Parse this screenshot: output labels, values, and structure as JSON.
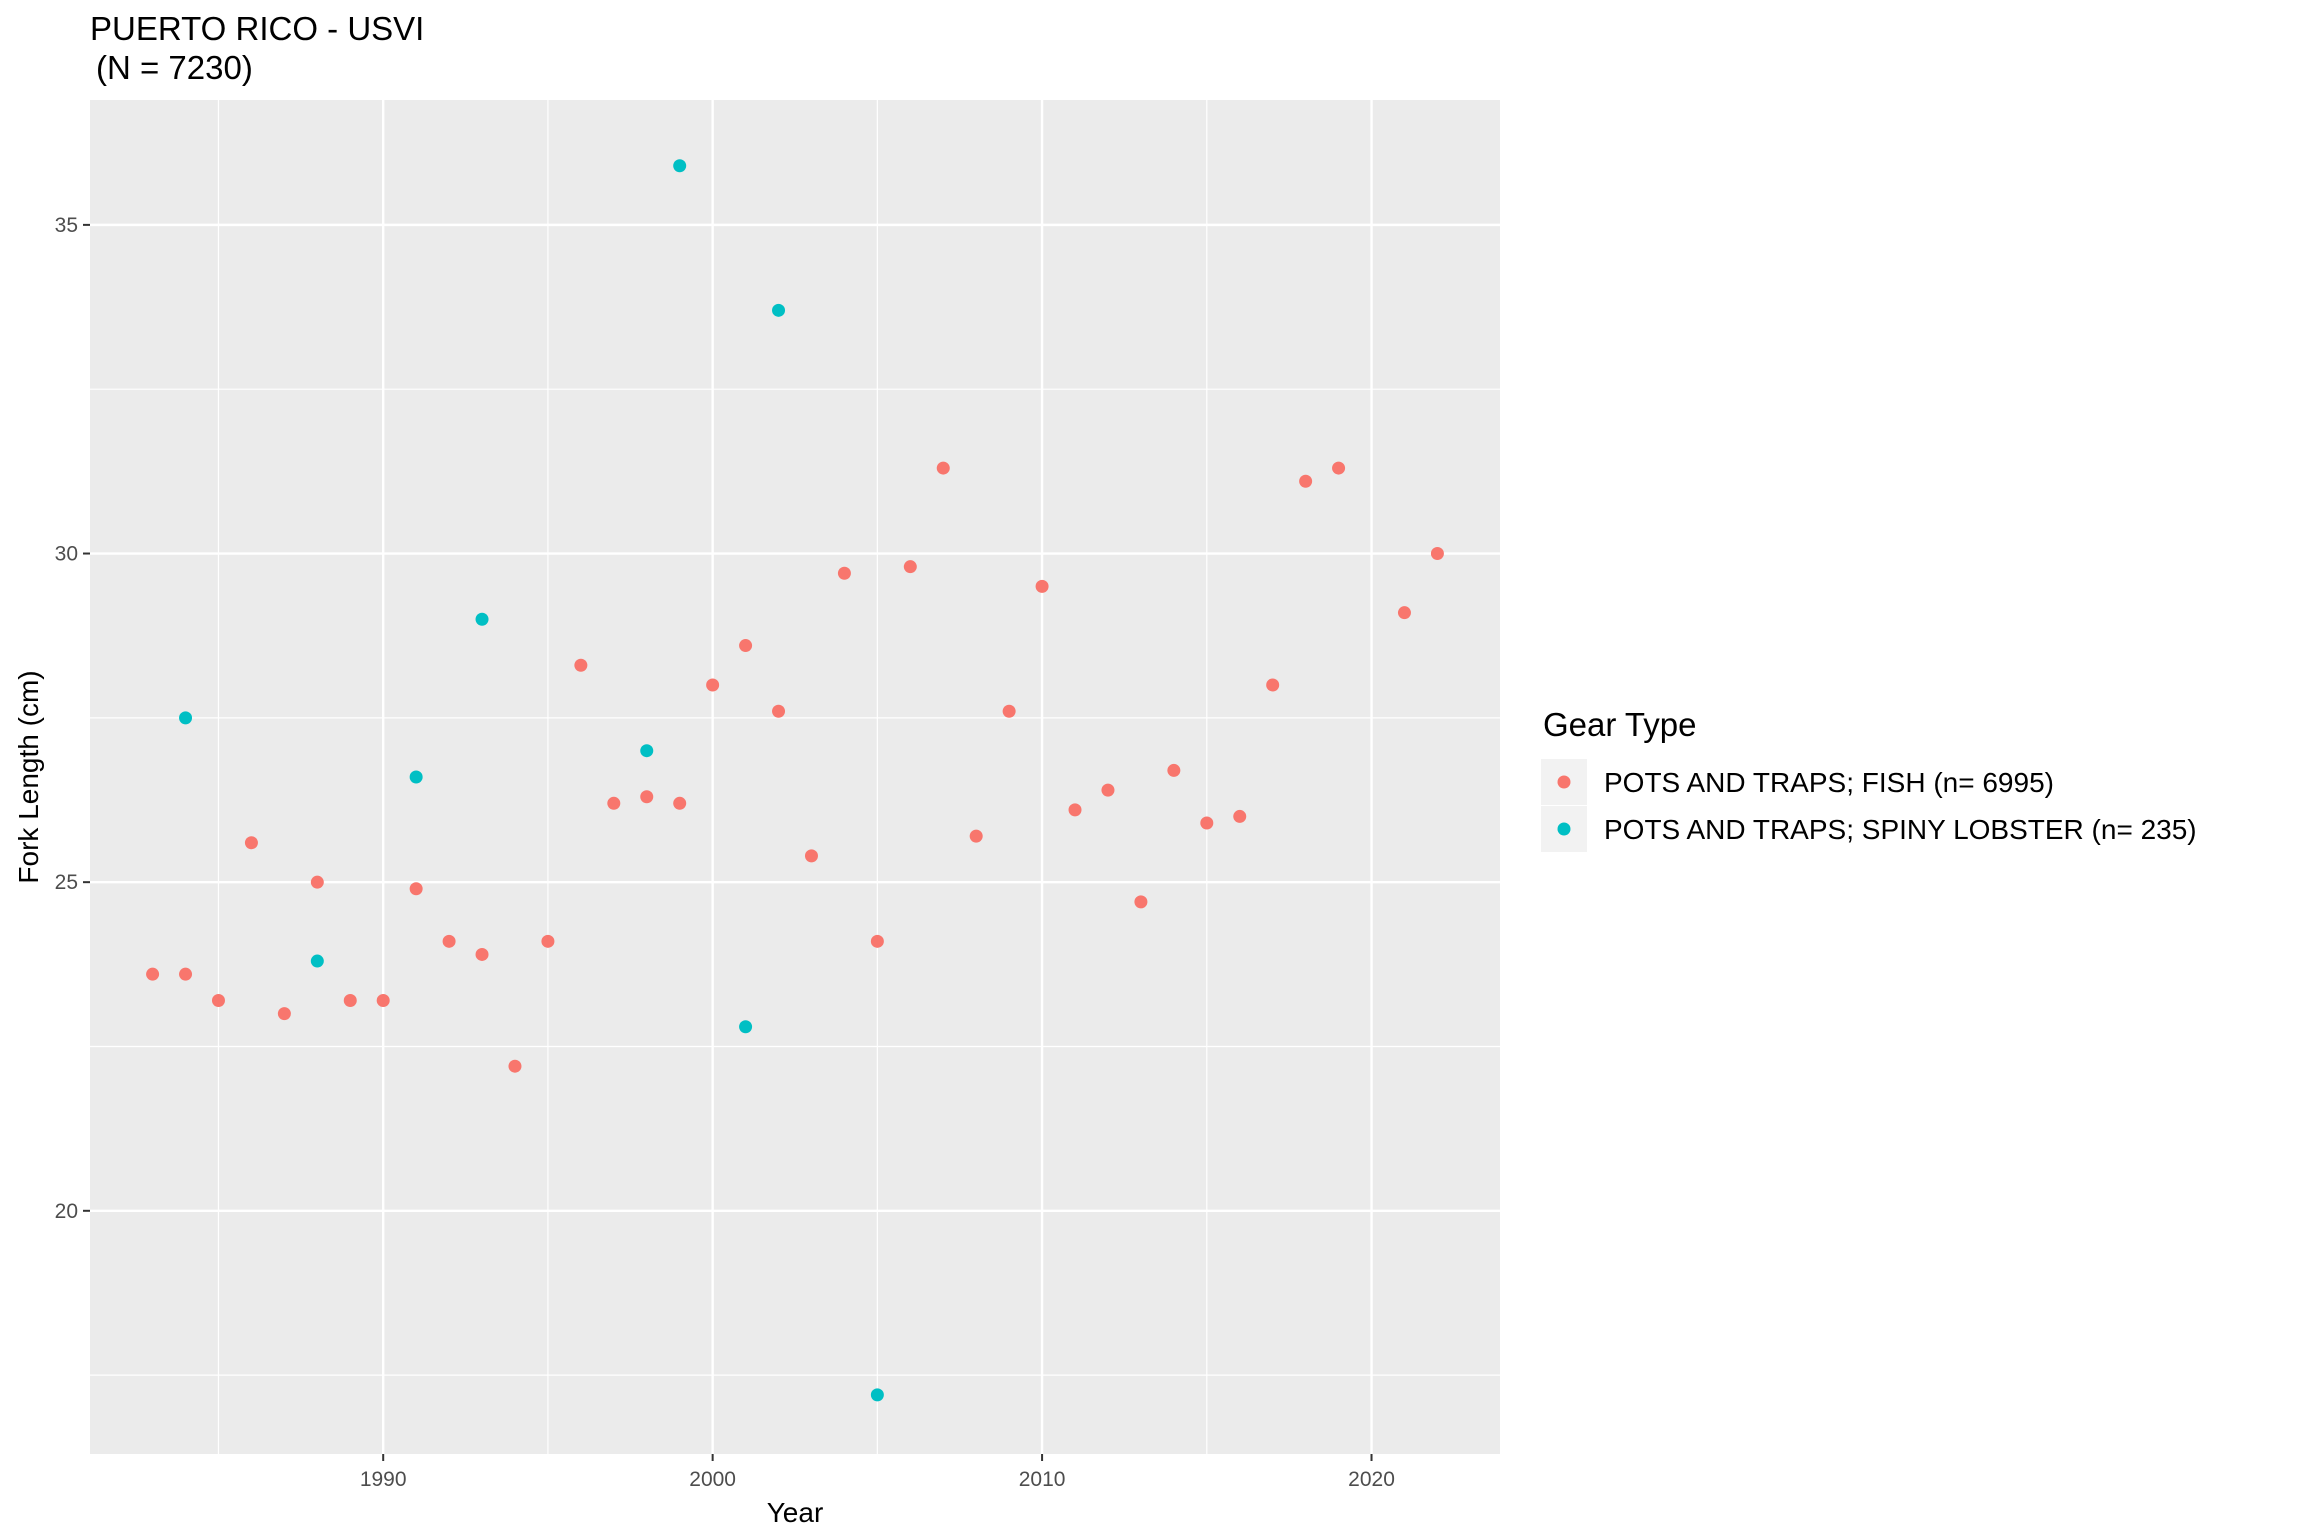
{
  "chart_data": {
    "type": "scatter",
    "title": "PUERTO RICO - USVI",
    "subtitle": "(N = 7230)",
    "xlabel": "Year",
    "ylabel": "Fork Length (cm)",
    "xlim": [
      1981.1,
      2023.9
    ],
    "ylim": [
      16.3,
      36.9
    ],
    "x_ticks": [
      1990,
      2000,
      2010,
      2020
    ],
    "y_ticks": [
      20,
      25,
      30,
      35
    ],
    "grid": true,
    "panel_background": "#ebebeb",
    "legend": {
      "title": "Gear Type",
      "position": "right"
    },
    "series": [
      {
        "name": "POTS AND TRAPS; FISH (n= 6995)",
        "color": "#f8766d",
        "points": [
          [
            1983,
            23.6
          ],
          [
            1984,
            23.6
          ],
          [
            1985,
            23.2
          ],
          [
            1986,
            25.6
          ],
          [
            1987,
            23.0
          ],
          [
            1988,
            25.0
          ],
          [
            1989,
            23.2
          ],
          [
            1990,
            23.2
          ],
          [
            1991,
            24.9
          ],
          [
            1992,
            24.1
          ],
          [
            1993,
            23.9
          ],
          [
            1994,
            22.2
          ],
          [
            1995,
            24.1
          ],
          [
            1996,
            28.3
          ],
          [
            1997,
            26.2
          ],
          [
            1998,
            26.3
          ],
          [
            1999,
            26.2
          ],
          [
            2000,
            28.0
          ],
          [
            2001,
            28.6
          ],
          [
            2002,
            27.6
          ],
          [
            2003,
            25.4
          ],
          [
            2004,
            29.7
          ],
          [
            2005,
            24.1
          ],
          [
            2006,
            29.8
          ],
          [
            2007,
            31.3
          ],
          [
            2008,
            25.7
          ],
          [
            2009,
            27.6
          ],
          [
            2010,
            29.5
          ],
          [
            2011,
            26.1
          ],
          [
            2012,
            26.4
          ],
          [
            2013,
            24.7
          ],
          [
            2014,
            26.7
          ],
          [
            2015,
            25.9
          ],
          [
            2016,
            26.0
          ],
          [
            2017,
            28.0
          ],
          [
            2018,
            31.1
          ],
          [
            2019,
            31.3
          ],
          [
            2021,
            29.1
          ],
          [
            2022,
            30.0
          ]
        ]
      },
      {
        "name": "POTS AND TRAPS; SPINY LOBSTER (n= 235)",
        "color": "#00bfc4",
        "points": [
          [
            1984,
            27.5
          ],
          [
            1988,
            23.8
          ],
          [
            1991,
            26.6
          ],
          [
            1993,
            29.0
          ],
          [
            1998,
            27.0
          ],
          [
            1999,
            35.9
          ],
          [
            2001,
            22.8
          ],
          [
            2002,
            33.7
          ],
          [
            2005,
            17.2
          ]
        ]
      }
    ]
  }
}
